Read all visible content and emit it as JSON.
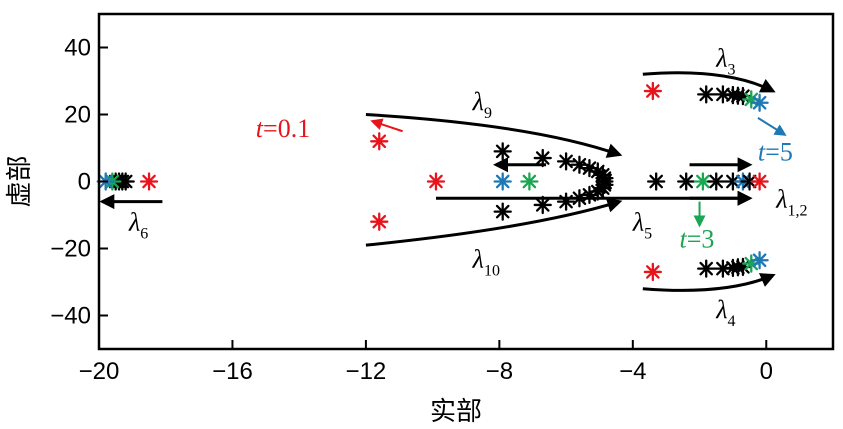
{
  "chart_data": {
    "type": "scatter",
    "xlabel": "实部",
    "ylabel": "虚部",
    "xlim": [
      -20,
      2
    ],
    "ylim": [
      -50,
      50
    ],
    "xticks": [
      -20,
      -16,
      -12,
      -8,
      -4,
      0
    ],
    "yticks": [
      -40,
      -20,
      0,
      20,
      40
    ],
    "xtick_labels": [
      "−20",
      "−16",
      "−12",
      "−8",
      "−4",
      "0"
    ],
    "ytick_labels": [
      "−40",
      "−20",
      "0",
      "20",
      "40"
    ],
    "grid": false,
    "marker": "asterisk",
    "colors": {
      "red": "#e8141b",
      "green": "#1aa653",
      "blue": "#1e78b4",
      "black": "#000000"
    },
    "points": [
      {
        "x": -19.5,
        "y": 0,
        "color": "black"
      },
      {
        "x": -19.4,
        "y": 0,
        "color": "black"
      },
      {
        "x": -19.3,
        "y": 0,
        "color": "black"
      },
      {
        "x": -19.2,
        "y": 0,
        "color": "black"
      },
      {
        "x": -19.6,
        "y": 0,
        "color": "green"
      },
      {
        "x": -19.8,
        "y": 0,
        "color": "blue"
      },
      {
        "x": -18.5,
        "y": 0,
        "color": "red"
      },
      {
        "x": -11.6,
        "y": 12,
        "color": "red"
      },
      {
        "x": -11.6,
        "y": -12,
        "color": "red"
      },
      {
        "x": -9.9,
        "y": 0,
        "color": "red"
      },
      {
        "x": -7.9,
        "y": 0,
        "color": "blue"
      },
      {
        "x": -7.1,
        "y": 0,
        "color": "green"
      },
      {
        "x": -7.9,
        "y": 9,
        "color": "black"
      },
      {
        "x": -6.7,
        "y": 7,
        "color": "black"
      },
      {
        "x": -6.0,
        "y": 6,
        "color": "black"
      },
      {
        "x": -5.6,
        "y": 5,
        "color": "black"
      },
      {
        "x": -5.3,
        "y": 4,
        "color": "black"
      },
      {
        "x": -5.05,
        "y": 3,
        "color": "black"
      },
      {
        "x": -4.9,
        "y": 2,
        "color": "black"
      },
      {
        "x": -4.85,
        "y": 1,
        "color": "black"
      },
      {
        "x": -4.85,
        "y": 0,
        "color": "black"
      },
      {
        "x": -7.9,
        "y": -9,
        "color": "black"
      },
      {
        "x": -6.7,
        "y": -7,
        "color": "black"
      },
      {
        "x": -6.0,
        "y": -6,
        "color": "black"
      },
      {
        "x": -5.6,
        "y": -5,
        "color": "black"
      },
      {
        "x": -5.3,
        "y": -4,
        "color": "black"
      },
      {
        "x": -5.05,
        "y": -3,
        "color": "black"
      },
      {
        "x": -4.9,
        "y": -2,
        "color": "black"
      },
      {
        "x": -4.85,
        "y": -1,
        "color": "black"
      },
      {
        "x": -3.4,
        "y": 27,
        "color": "red"
      },
      {
        "x": -1.8,
        "y": 26,
        "color": "black"
      },
      {
        "x": -1.3,
        "y": 26,
        "color": "black"
      },
      {
        "x": -1.0,
        "y": 25.8,
        "color": "black"
      },
      {
        "x": -0.85,
        "y": 25.6,
        "color": "black"
      },
      {
        "x": -0.7,
        "y": 25.5,
        "color": "black"
      },
      {
        "x": -0.45,
        "y": 24.5,
        "color": "green"
      },
      {
        "x": -0.2,
        "y": 23.5,
        "color": "blue"
      },
      {
        "x": -3.4,
        "y": -27,
        "color": "red"
      },
      {
        "x": -1.8,
        "y": -26,
        "color": "black"
      },
      {
        "x": -1.3,
        "y": -26,
        "color": "black"
      },
      {
        "x": -1.0,
        "y": -25.8,
        "color": "black"
      },
      {
        "x": -0.85,
        "y": -25.6,
        "color": "black"
      },
      {
        "x": -0.7,
        "y": -25.5,
        "color": "black"
      },
      {
        "x": -0.45,
        "y": -24.5,
        "color": "green"
      },
      {
        "x": -0.2,
        "y": -23.5,
        "color": "blue"
      },
      {
        "x": -3.3,
        "y": 0,
        "color": "black"
      },
      {
        "x": -2.4,
        "y": 0,
        "color": "black"
      },
      {
        "x": -1.9,
        "y": 0,
        "color": "green"
      },
      {
        "x": -1.5,
        "y": 0,
        "color": "black"
      },
      {
        "x": -1.0,
        "y": 0,
        "color": "black"
      },
      {
        "x": -0.7,
        "y": 0,
        "color": "blue"
      },
      {
        "x": -0.5,
        "y": 0,
        "color": "black"
      },
      {
        "x": -0.2,
        "y": 0,
        "color": "red"
      }
    ],
    "arrows": [
      {
        "kind": "curve",
        "from": [
          -12,
          20
        ],
        "ctrl": [
          -7,
          17
        ],
        "to": [
          -4.4,
          8
        ]
      },
      {
        "kind": "curve",
        "from": [
          -12,
          -19
        ],
        "ctrl": [
          -7,
          -14
        ],
        "to": [
          -4.4,
          -6
        ]
      },
      {
        "kind": "curve",
        "from": [
          -3.7,
          32
        ],
        "ctrl": [
          -1.2,
          34
        ],
        "to": [
          0.2,
          27
        ]
      },
      {
        "kind": "curve",
        "from": [
          -3.7,
          -32
        ],
        "ctrl": [
          -1.2,
          -34
        ],
        "to": [
          0.2,
          -28
        ]
      },
      {
        "kind": "line",
        "from": [
          -9.9,
          -5
        ],
        "to": [
          -0.5,
          -5
        ]
      },
      {
        "kind": "line",
        "from": [
          -2.3,
          5
        ],
        "to": [
          -0.5,
          5
        ]
      },
      {
        "kind": "line",
        "from": [
          -2.3,
          -5
        ],
        "to": [
          -0.5,
          -5
        ]
      },
      {
        "kind": "line",
        "from": [
          -6.6,
          5
        ],
        "to": [
          -8.1,
          5
        ]
      },
      {
        "kind": "line",
        "from": [
          -18.1,
          -6
        ],
        "to": [
          -19.9,
          -6
        ]
      },
      {
        "kind": "line",
        "from": [
          -10.9,
          15
        ],
        "to": [
          -11.8,
          18
        ],
        "color": "red"
      },
      {
        "kind": "line",
        "from": [
          -0.25,
          19
        ],
        "to": [
          0.55,
          14
        ],
        "color": "blue"
      },
      {
        "kind": "line",
        "from": [
          -2.0,
          -6
        ],
        "to": [
          -2.0,
          -13
        ],
        "color": "green"
      }
    ],
    "annotations": [
      {
        "base": "λ",
        "sub": "9",
        "x": -8.8,
        "y": 24,
        "color": "black"
      },
      {
        "base": "λ",
        "sub": "10",
        "x": -8.8,
        "y": -23,
        "color": "black"
      },
      {
        "base": "λ",
        "sub": "3",
        "x": -1.5,
        "y": 37,
        "color": "black"
      },
      {
        "base": "λ",
        "sub": "4",
        "x": -1.5,
        "y": -38,
        "color": "black"
      },
      {
        "base": "λ",
        "sub": "5",
        "x": -4.0,
        "y": -12,
        "color": "black"
      },
      {
        "base": "λ",
        "sub": "1,2",
        "x": 0.3,
        "y": -5,
        "color": "black"
      },
      {
        "base": "λ",
        "sub": "6",
        "x": -19.1,
        "y": -12,
        "color": "black"
      },
      {
        "base": "t",
        "rest": "=0.1",
        "x": -15.3,
        "y": 16,
        "color": "red"
      },
      {
        "base": "t",
        "rest": "=5",
        "x": -0.25,
        "y": 9,
        "color": "blue"
      },
      {
        "base": "t",
        "rest": "=3",
        "x": -2.6,
        "y": -17,
        "color": "green"
      }
    ]
  }
}
